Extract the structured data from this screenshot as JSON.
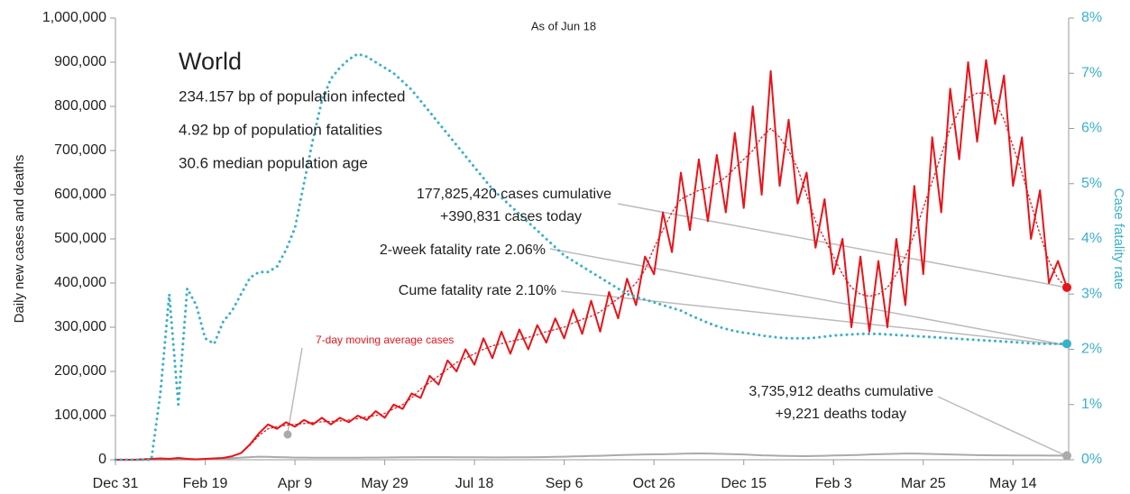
{
  "chart_data": {
    "type": "line",
    "ylabel": "Daily new cases and deaths",
    "y2label": "Case fatality rate",
    "annotations": [
      "World",
      "234.157 bp of population infected",
      "4.92 bp of population fatalities",
      "30.6 median population age",
      "As of Jun 18",
      "177,825,420 cases cumulative",
      "+390,831 cases today",
      "2-week fatality rate 2.06%",
      "Cume fatality rate 2.10%",
      "3,735,912 deaths cumulative",
      "+9,221 deaths today",
      "7-day moving average cases"
    ],
    "xlim": [
      0,
      531
    ],
    "xticks": [
      {
        "value": 0,
        "label": "Dec 31"
      },
      {
        "value": 50,
        "label": "Feb 19"
      },
      {
        "value": 100,
        "label": "Apr 9"
      },
      {
        "value": 150,
        "label": "May 29"
      },
      {
        "value": 200,
        "label": "Jul 18"
      },
      {
        "value": 250,
        "label": "Sep 6"
      },
      {
        "value": 300,
        "label": "Oct 26"
      },
      {
        "value": 350,
        "label": "Dec 15"
      },
      {
        "value": 400,
        "label": "Feb 3"
      },
      {
        "value": 450,
        "label": "Mar 25"
      },
      {
        "value": 500,
        "label": "May 14"
      }
    ],
    "ylim": [
      0,
      1000000
    ],
    "yticks": [
      0,
      {
        "value": 100000,
        "label": "100,000"
      },
      {
        "value": 200000,
        "label": "200,000"
      },
      {
        "value": 300000,
        "label": "300,000"
      },
      {
        "value": 400000,
        "label": "400,000"
      },
      {
        "value": 500000,
        "label": "500,000"
      },
      {
        "value": 600000,
        "label": "600,000"
      },
      {
        "value": 700000,
        "label": "700,000"
      },
      {
        "value": 800000,
        "label": "800,000"
      },
      {
        "value": 900000,
        "label": "900,000"
      },
      {
        "value": 1000000,
        "label": "1,000,000"
      }
    ],
    "y2lim": [
      0,
      8
    ],
    "y2ticks": [
      {
        "value": 0,
        "label": "0%"
      },
      {
        "value": 1,
        "label": "1%"
      },
      {
        "value": 2,
        "label": "2%"
      },
      {
        "value": 3,
        "label": "3%"
      },
      {
        "value": 4,
        "label": "4%"
      },
      {
        "value": 5,
        "label": "5%"
      },
      {
        "value": 6,
        "label": "6%"
      },
      {
        "value": 7,
        "label": "7%"
      },
      {
        "value": 8,
        "label": "8%"
      }
    ],
    "x": [
      0,
      5,
      10,
      15,
      20,
      25,
      30,
      35,
      40,
      45,
      50,
      55,
      60,
      65,
      70,
      75,
      80,
      85,
      90,
      95,
      100,
      105,
      110,
      115,
      120,
      125,
      130,
      135,
      140,
      145,
      150,
      155,
      160,
      165,
      170,
      175,
      180,
      185,
      190,
      195,
      200,
      205,
      210,
      215,
      220,
      225,
      230,
      235,
      240,
      245,
      250,
      255,
      260,
      265,
      270,
      275,
      280,
      285,
      290,
      295,
      300,
      305,
      310,
      315,
      320,
      325,
      330,
      335,
      340,
      345,
      350,
      355,
      360,
      365,
      370,
      375,
      380,
      385,
      390,
      395,
      400,
      405,
      410,
      415,
      420,
      425,
      430,
      435,
      440,
      445,
      450,
      455,
      460,
      465,
      470,
      475,
      480,
      485,
      490,
      495,
      500,
      505,
      510,
      515,
      520,
      525,
      530
    ],
    "series": [
      {
        "color": "#e8141a",
        "style": "solid",
        "values": [
          0,
          0,
          0,
          1000,
          2000,
          3000,
          2000,
          4000,
          2000,
          1000,
          2000,
          3000,
          4000,
          8000,
          15000,
          35000,
          60000,
          80000,
          70000,
          85000,
          75000,
          90000,
          80000,
          95000,
          80000,
          95000,
          85000,
          100000,
          90000,
          110000,
          95000,
          125000,
          115000,
          150000,
          140000,
          190000,
          170000,
          225000,
          200000,
          250000,
          215000,
          275000,
          230000,
          290000,
          240000,
          295000,
          250000,
          305000,
          265000,
          320000,
          275000,
          340000,
          285000,
          360000,
          290000,
          380000,
          320000,
          410000,
          350000,
          460000,
          420000,
          560000,
          470000,
          650000,
          520000,
          680000,
          540000,
          690000,
          560000,
          740000,
          570000,
          800000,
          600000,
          880000,
          620000,
          770000,
          580000,
          650000,
          480000,
          590000,
          420000,
          500000,
          300000,
          460000,
          290000,
          450000,
          300000,
          500000,
          350000,
          620000,
          420000,
          730000,
          560000,
          840000,
          680000,
          900000,
          720000,
          905000,
          760000,
          870000,
          620000,
          730000,
          500000,
          610000,
          400000,
          450000,
          390000
        ]
      },
      {
        "color": "#e8141a",
        "style": "dotted",
        "values": [
          0,
          0,
          0,
          1000,
          2000,
          2000,
          2000,
          3000,
          2000,
          1000,
          2000,
          2000,
          4000,
          8000,
          15000,
          33000,
          55000,
          70000,
          75000,
          78000,
          80000,
          82000,
          84000,
          86000,
          87000,
          88000,
          90000,
          93000,
          97000,
          100000,
          105000,
          115000,
          125000,
          140000,
          160000,
          175000,
          190000,
          205000,
          220000,
          230000,
          240000,
          250000,
          258000,
          263000,
          268000,
          272000,
          277000,
          283000,
          290000,
          295000,
          300000,
          310000,
          318000,
          325000,
          335000,
          350000,
          365000,
          380000,
          400000,
          430000,
          480000,
          520000,
          560000,
          590000,
          600000,
          610000,
          615000,
          625000,
          640000,
          660000,
          680000,
          700000,
          730000,
          750000,
          730000,
          700000,
          660000,
          600000,
          540000,
          500000,
          460000,
          420000,
          390000,
          375000,
          370000,
          375000,
          390000,
          420000,
          460000,
          510000,
          570000,
          630000,
          690000,
          750000,
          790000,
          820000,
          830000,
          830000,
          810000,
          770000,
          710000,
          650000,
          580000,
          510000,
          450000,
          410000,
          390000
        ]
      },
      {
        "color": "#aaaaaa",
        "style": "solid",
        "values": [
          0,
          0,
          0,
          0,
          0,
          0,
          100,
          200,
          300,
          500,
          800,
          1500,
          2500,
          3500,
          5000,
          6000,
          7000,
          6500,
          6000,
          5500,
          5000,
          4800,
          4600,
          4500,
          4400,
          4500,
          4600,
          4700,
          4800,
          5000,
          5200,
          5400,
          5600,
          5800,
          5900,
          6000,
          6000,
          5900,
          5800,
          5700,
          5600,
          5500,
          5400,
          5400,
          5500,
          5600,
          5800,
          6000,
          6200,
          6500,
          7000,
          7500,
          8000,
          8500,
          9000,
          9800,
          10500,
          11000,
          11500,
          12000,
          12200,
          12500,
          13000,
          13500,
          14000,
          14200,
          14000,
          13500,
          13000,
          12500,
          12000,
          11000,
          10000,
          9500,
          9000,
          8500,
          8300,
          8200,
          8500,
          9000,
          9500,
          10000,
          10500,
          11000,
          12000,
          12500,
          13000,
          13500,
          14000,
          14000,
          13500,
          13000,
          12500,
          12000,
          11500,
          11000,
          10500,
          10200,
          10000,
          9900,
          9800,
          9700,
          9600,
          9500,
          9400,
          9300,
          9221
        ]
      },
      {
        "color": "#3bb0c9",
        "style": "dotted",
        "axis": "y2",
        "values": [
          0,
          0,
          0,
          0,
          0,
          1.2,
          3.0,
          1.0,
          3.1,
          2.8,
          2.2,
          2.1,
          2.5,
          2.7,
          3.0,
          3.3,
          3.4,
          3.4,
          3.5,
          3.8,
          4.2,
          5.0,
          5.8,
          6.5,
          6.9,
          7.1,
          7.25,
          7.35,
          7.3,
          7.2,
          7.1,
          7.0,
          6.85,
          6.7,
          6.5,
          6.3,
          6.1,
          5.9,
          5.7,
          5.5,
          5.3,
          5.1,
          4.9,
          4.75,
          4.6,
          4.45,
          4.3,
          4.15,
          4.0,
          3.85,
          3.7,
          3.6,
          3.5,
          3.4,
          3.3,
          3.2,
          3.1,
          3.0,
          2.95,
          2.9,
          2.85,
          2.8,
          2.75,
          2.7,
          2.62,
          2.55,
          2.48,
          2.42,
          2.37,
          2.33,
          2.3,
          2.28,
          2.25,
          2.23,
          2.21,
          2.2,
          2.2,
          2.2,
          2.21,
          2.23,
          2.25,
          2.26,
          2.27,
          2.28,
          2.28,
          2.28,
          2.27,
          2.26,
          2.25,
          2.24,
          2.23,
          2.22,
          2.21,
          2.2,
          2.19,
          2.18,
          2.17,
          2.16,
          2.15,
          2.14,
          2.13,
          2.12,
          2.11,
          2.1,
          2.1,
          2.1,
          2.1
        ]
      }
    ]
  }
}
